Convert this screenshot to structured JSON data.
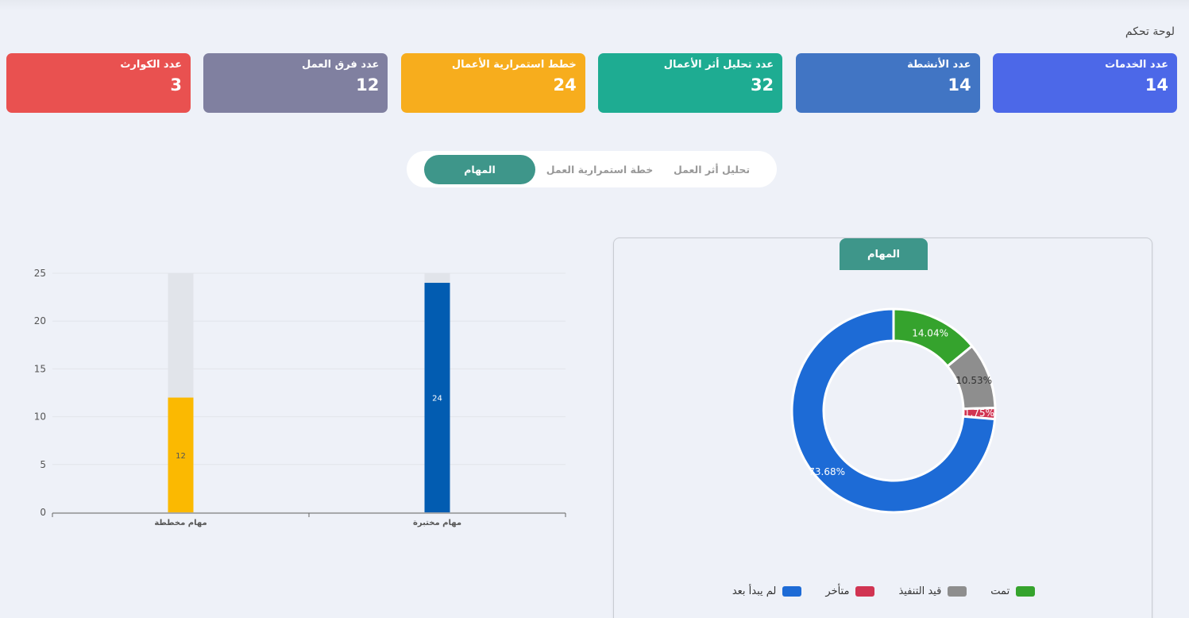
{
  "page": {
    "title": "لوحة تحكم"
  },
  "cards": [
    {
      "label": "عدد الخدمات",
      "value": "14",
      "color": "#4c68e8"
    },
    {
      "label": "عدد الأنشطة",
      "value": "14",
      "color": "#4175c4"
    },
    {
      "label": "عدد تحليل أثر الأعمال",
      "value": "32",
      "color": "#1eac92"
    },
    {
      "label": "خطط استمرارية الأعمال",
      "value": "24",
      "color": "#f7ad1d"
    },
    {
      "label": "عدد فرق العمل",
      "value": "12",
      "color": "#8080a0"
    },
    {
      "label": "عدد الكوارث",
      "value": "3",
      "color": "#e95150"
    }
  ],
  "tabs": [
    {
      "label": "تحليل أثر العمل"
    },
    {
      "label": "خطة استمرارية العمل"
    },
    {
      "label": "المهام"
    }
  ],
  "pie_panel": {
    "tab_label": "المهام"
  },
  "chart_data": [
    {
      "type": "bar",
      "categories": [
        "مهام مخططة",
        "مهام مختبرة"
      ],
      "values": [
        12,
        24
      ],
      "colors": [
        "#fbb901",
        "#025cb1"
      ],
      "background_value": 25,
      "data_labels": [
        "12",
        "24"
      ],
      "ylim": [
        0,
        25
      ],
      "yticks": [
        0,
        5,
        10,
        15,
        20,
        25
      ],
      "grid": true
    },
    {
      "type": "pie",
      "variant": "donut",
      "labels": [
        "تمت",
        "قيد التنفيذ",
        "متأخر",
        "لم يبدأ بعد"
      ],
      "values": [
        14.04,
        10.53,
        1.75,
        73.68
      ],
      "value_labels": [
        "14.04%",
        "10.53%",
        "1.75%",
        "73.68%"
      ],
      "colors": [
        "#35a32d",
        "#8e8e8e",
        "#d13452",
        "#1d6bd6"
      ],
      "legend_order": [
        "لم يبدأ بعد",
        "متأخر",
        "قيد التنفيذ",
        "تمت"
      ],
      "legend_colors": [
        "#1d6bd6",
        "#d13452",
        "#8e8e8e",
        "#35a32d"
      ],
      "legend": "bottom"
    }
  ]
}
